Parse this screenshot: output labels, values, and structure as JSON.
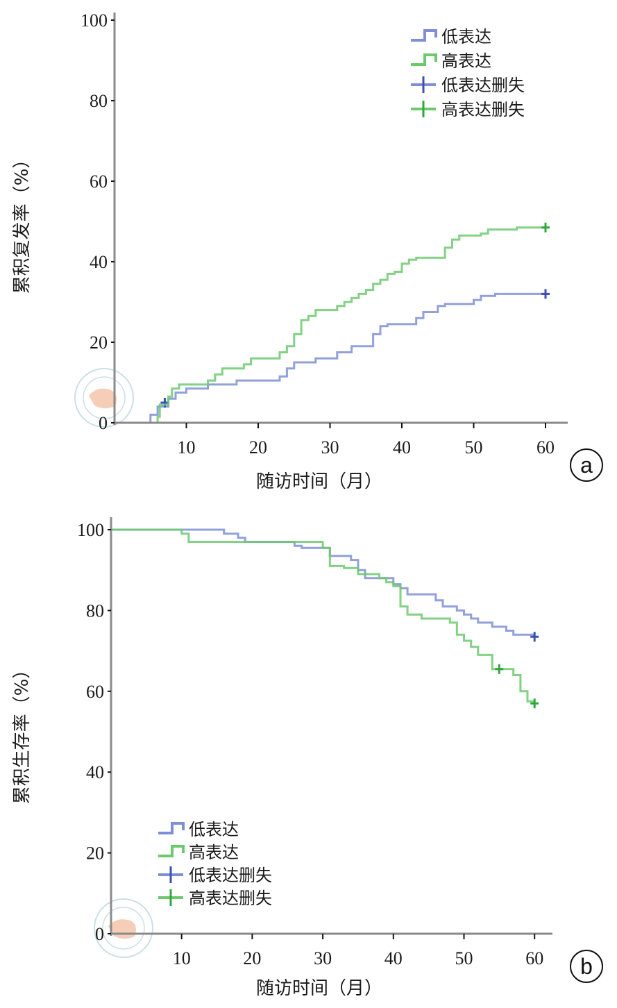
{
  "colors": {
    "low": "#7f8fd6",
    "high": "#6cc96e",
    "low_censor": "#3b4fb8",
    "high_censor": "#2fa83a",
    "axis": "#8a8a8a"
  },
  "chart_data": [
    {
      "type": "line",
      "step": true,
      "panel_label": "a",
      "title": "",
      "xlabel": "随访时间（月）",
      "ylabel": "累积复发率（%）",
      "xlim": [
        0,
        63
      ],
      "ylim": [
        0,
        100
      ],
      "xticks": [
        10,
        20,
        30,
        40,
        50,
        60
      ],
      "yticks": [
        0,
        20,
        40,
        60,
        80,
        100
      ],
      "legend_position": "top-right",
      "legend": [
        "低表达",
        "高表达",
        "低表达删失",
        "高表达删失"
      ],
      "series": [
        {
          "name": "低表达",
          "color_key": "low",
          "points": [
            [
              0,
              0
            ],
            [
              5,
              0
            ],
            [
              5,
              2
            ],
            [
              6,
              2
            ],
            [
              6,
              4
            ],
            [
              7.5,
              4
            ],
            [
              7.5,
              6
            ],
            [
              8.5,
              6
            ],
            [
              8.5,
              7.5
            ],
            [
              10,
              7.5
            ],
            [
              10,
              8.5
            ],
            [
              13,
              8.5
            ],
            [
              13,
              9.5
            ],
            [
              17,
              9.5
            ],
            [
              17,
              10.5
            ],
            [
              23,
              10.5
            ],
            [
              23,
              11.5
            ],
            [
              24,
              11.5
            ],
            [
              24,
              13.5
            ],
            [
              25,
              13.5
            ],
            [
              25,
              15
            ],
            [
              28,
              15
            ],
            [
              28,
              16
            ],
            [
              31,
              16
            ],
            [
              31,
              17.5
            ],
            [
              33,
              17.5
            ],
            [
              33,
              19
            ],
            [
              36,
              19
            ],
            [
              36,
              22
            ],
            [
              37,
              22
            ],
            [
              37,
              24
            ],
            [
              38,
              24
            ],
            [
              38,
              24.5
            ],
            [
              42,
              24.5
            ],
            [
              42,
              26
            ],
            [
              43,
              26
            ],
            [
              43,
              27.5
            ],
            [
              45,
              27.5
            ],
            [
              45,
              29
            ],
            [
              46,
              29
            ],
            [
              46,
              29.5
            ],
            [
              50,
              29.5
            ],
            [
              50,
              30.5
            ],
            [
              51,
              30.5
            ],
            [
              51,
              31.5
            ],
            [
              53,
              31.5
            ],
            [
              53,
              32
            ],
            [
              60,
              32
            ]
          ],
          "censor": [
            [
              7,
              5
            ],
            [
              60,
              32
            ]
          ]
        },
        {
          "name": "高表达",
          "color_key": "high",
          "points": [
            [
              0,
              0
            ],
            [
              6,
              0
            ],
            [
              6,
              1.5
            ],
            [
              6.3,
              1.5
            ],
            [
              6.3,
              4.5
            ],
            [
              7.5,
              4.5
            ],
            [
              7.5,
              6.5
            ],
            [
              8,
              6.5
            ],
            [
              8,
              8.5
            ],
            [
              9,
              8.5
            ],
            [
              9,
              9.5
            ],
            [
              13,
              9.5
            ],
            [
              13,
              10.5
            ],
            [
              14,
              10.5
            ],
            [
              14,
              12
            ],
            [
              15,
              12
            ],
            [
              15,
              13.5
            ],
            [
              18,
              13.5
            ],
            [
              18,
              14.5
            ],
            [
              19,
              14.5
            ],
            [
              19,
              16
            ],
            [
              23,
              16
            ],
            [
              23,
              17.5
            ],
            [
              24,
              17.5
            ],
            [
              24,
              19
            ],
            [
              25,
              19
            ],
            [
              25,
              22
            ],
            [
              26,
              22
            ],
            [
              26,
              25.5
            ],
            [
              27,
              25.5
            ],
            [
              27,
              26.5
            ],
            [
              28,
              26.5
            ],
            [
              28,
              28
            ],
            [
              31,
              28
            ],
            [
              31,
              29
            ],
            [
              32,
              29
            ],
            [
              32,
              30
            ],
            [
              33,
              30
            ],
            [
              33,
              31
            ],
            [
              34,
              31
            ],
            [
              34,
              32
            ],
            [
              35,
              32
            ],
            [
              35,
              33
            ],
            [
              36,
              33
            ],
            [
              36,
              34.5
            ],
            [
              37,
              34.5
            ],
            [
              37,
              35.5
            ],
            [
              38,
              35.5
            ],
            [
              38,
              37
            ],
            [
              39,
              37
            ],
            [
              39,
              37.5
            ],
            [
              40,
              37.5
            ],
            [
              40,
              39.5
            ],
            [
              41,
              39.5
            ],
            [
              41,
              40.5
            ],
            [
              42,
              40.5
            ],
            [
              42,
              41
            ],
            [
              46,
              41
            ],
            [
              46,
              43.5
            ],
            [
              47,
              43.5
            ],
            [
              47,
              45.5
            ],
            [
              48,
              45.5
            ],
            [
              48,
              46.5
            ],
            [
              51,
              46.5
            ],
            [
              51,
              47
            ],
            [
              52,
              47
            ],
            [
              52,
              48
            ],
            [
              56,
              48
            ],
            [
              56,
              48.5
            ],
            [
              60,
              48.5
            ]
          ],
          "censor": [
            [
              60,
              48.5
            ]
          ]
        }
      ]
    },
    {
      "type": "line",
      "step": true,
      "panel_label": "b",
      "title": "",
      "xlabel": "随访时间（月）",
      "ylabel": "累积生存率（%）",
      "xlim": [
        0,
        62
      ],
      "ylim": [
        0,
        100
      ],
      "xticks": [
        10,
        20,
        30,
        40,
        50,
        60
      ],
      "yticks": [
        0,
        20,
        40,
        60,
        80,
        100
      ],
      "legend_position": "bottom-left",
      "legend": [
        "低表达",
        "高表达",
        "低表达删失",
        "高表达删失"
      ],
      "series": [
        {
          "name": "低表达",
          "color_key": "low",
          "points": [
            [
              0,
              100
            ],
            [
              16,
              100
            ],
            [
              16,
              99
            ],
            [
              18,
              99
            ],
            [
              18,
              98
            ],
            [
              19,
              98
            ],
            [
              19,
              97
            ],
            [
              26,
              97
            ],
            [
              26,
              96
            ],
            [
              27,
              96
            ],
            [
              27,
              95.5
            ],
            [
              31,
              95.5
            ],
            [
              31,
              93.5
            ],
            [
              34,
              93.5
            ],
            [
              34,
              92.5
            ],
            [
              35,
              92.5
            ],
            [
              35,
              90
            ],
            [
              36,
              90
            ],
            [
              36,
              88
            ],
            [
              40,
              88
            ],
            [
              40,
              86.5
            ],
            [
              41,
              86.5
            ],
            [
              41,
              85.5
            ],
            [
              42,
              85.5
            ],
            [
              42,
              84
            ],
            [
              46,
              84
            ],
            [
              46,
              82.5
            ],
            [
              47,
              82.5
            ],
            [
              47,
              81
            ],
            [
              49,
              81
            ],
            [
              49,
              80
            ],
            [
              50,
              80
            ],
            [
              50,
              79
            ],
            [
              51,
              79
            ],
            [
              51,
              78
            ],
            [
              52,
              78
            ],
            [
              52,
              77
            ],
            [
              54,
              77
            ],
            [
              54,
              76
            ],
            [
              56,
              76
            ],
            [
              56,
              75
            ],
            [
              57,
              75
            ],
            [
              57,
              74
            ],
            [
              60,
              74
            ]
          ],
          "censor": [
            [
              60,
              73.5
            ]
          ]
        },
        {
          "name": "高表达",
          "color_key": "high",
          "points": [
            [
              0,
              100
            ],
            [
              10,
              100
            ],
            [
              10,
              99
            ],
            [
              11,
              99
            ],
            [
              11,
              97
            ],
            [
              30,
              97
            ],
            [
              30,
              95.5
            ],
            [
              31,
              95.5
            ],
            [
              31,
              91
            ],
            [
              33,
              91
            ],
            [
              33,
              90.5
            ],
            [
              35,
              90.5
            ],
            [
              35,
              89
            ],
            [
              38,
              89
            ],
            [
              38,
              88
            ],
            [
              39,
              88
            ],
            [
              39,
              87
            ],
            [
              40,
              87
            ],
            [
              40,
              86
            ],
            [
              41,
              86
            ],
            [
              41,
              81
            ],
            [
              42,
              81
            ],
            [
              42,
              79
            ],
            [
              44,
              79
            ],
            [
              44,
              78
            ],
            [
              48,
              78
            ],
            [
              48,
              77
            ],
            [
              49,
              77
            ],
            [
              49,
              74
            ],
            [
              50,
              74
            ],
            [
              50,
              72.5
            ],
            [
              51,
              72.5
            ],
            [
              51,
              71
            ],
            [
              52,
              71
            ],
            [
              52,
              69
            ],
            [
              54,
              69
            ],
            [
              54,
              65.5
            ],
            [
              57,
              65.5
            ],
            [
              57,
              64
            ],
            [
              58,
              64
            ],
            [
              58,
              60
            ],
            [
              59,
              60
            ],
            [
              59,
              57.5
            ],
            [
              60,
              57.5
            ]
          ],
          "censor": [
            [
              55,
              65.5
            ],
            [
              60,
              57
            ]
          ]
        }
      ]
    }
  ]
}
